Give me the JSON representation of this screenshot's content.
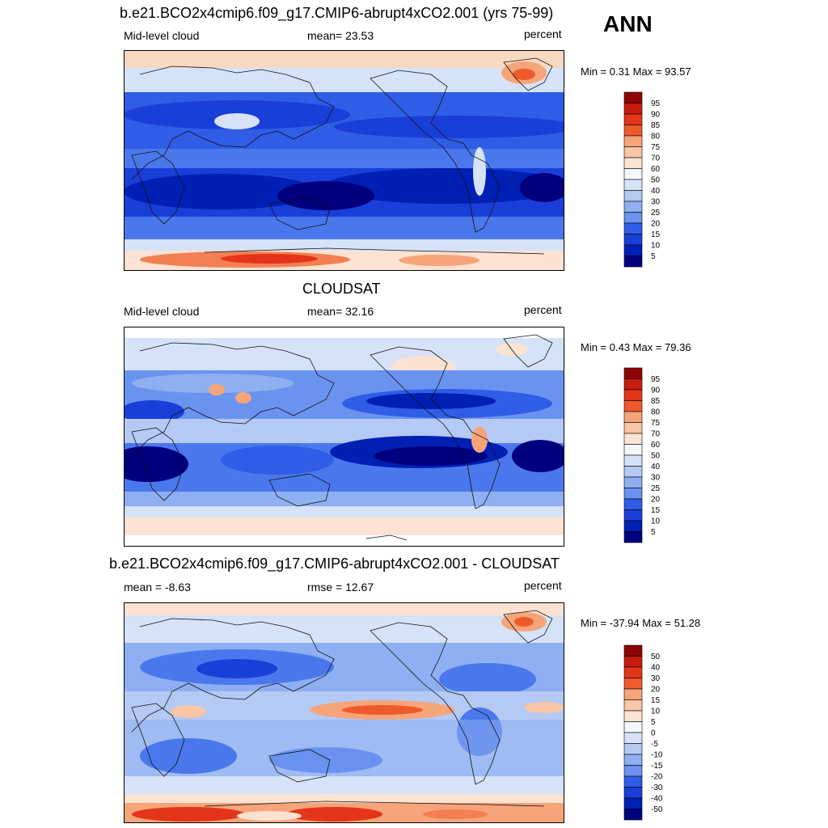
{
  "season": "ANN",
  "colors": {
    "levels_abs": [
      "#00007f",
      "#001fb3",
      "#1a3fd8",
      "#2f5de6",
      "#4a78ec",
      "#6a93f0",
      "#8eaff2",
      "#b4c9f4",
      "#d6e2f7",
      "#f4f7fb",
      "#fbe2d2",
      "#f9c6a6",
      "#f6a47a",
      "#f38052",
      "#ef5a2c",
      "#e4351a",
      "#c61c0f",
      "#8f0505"
    ],
    "levels_diff": [
      "#00007f",
      "#001fb3",
      "#1a3fd8",
      "#2f5de6",
      "#4a78ec",
      "#6a93f0",
      "#8eaff2",
      "#b4c9f4",
      "#d6e2f7",
      "#f4f7fb",
      "#fbe2d2",
      "#f9c6a6",
      "#f6a47a",
      "#f38052",
      "#ef5a2c",
      "#e4351a",
      "#c61c0f",
      "#8f0505"
    ]
  },
  "panels": [
    {
      "title": "b.e21.BCO2x4cmip6.f09_g17.CMIP6-abrupt4xCO2.001 (yrs 75-99)",
      "left_label": "Mid-level cloud",
      "center_label": "mean=  23.53",
      "right_label": "percent",
      "minmax": "Min =   0.31 Max =  93.57",
      "colorbar_ticks": [
        "95",
        "90",
        "85",
        "80",
        "75",
        "70",
        "60",
        "50",
        "40",
        "30",
        "25",
        "20",
        "15",
        "10",
        "5"
      ]
    },
    {
      "title": "CLOUDSAT",
      "left_label": "Mid-level cloud",
      "center_label": "mean=  32.16",
      "right_label": "percent",
      "minmax": "Min =   0.43 Max =  79.36",
      "colorbar_ticks": [
        "95",
        "90",
        "85",
        "80",
        "75",
        "70",
        "60",
        "50",
        "40",
        "30",
        "25",
        "20",
        "15",
        "10",
        "5"
      ]
    },
    {
      "title": "b.e21.BCO2x4cmip6.f09_g17.CMIP6-abrupt4xCO2.001 - CLOUDSAT",
      "left_label": "mean =  -8.63",
      "center_label": "rmse =  12.67",
      "right_label": "percent",
      "minmax": "Min = -37.94 Max =  51.28",
      "colorbar_ticks": [
        "50",
        "40",
        "30",
        "20",
        "15",
        "10",
        "5",
        "0",
        "-5",
        "-10",
        "-15",
        "-20",
        "-30",
        "-40",
        "-50"
      ]
    }
  ]
}
